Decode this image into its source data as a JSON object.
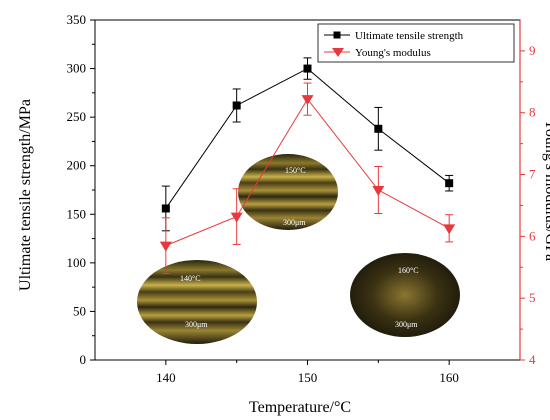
{
  "chart_data": {
    "type": "line",
    "x": [
      140,
      145,
      150,
      155,
      160
    ],
    "xlabel": "Temperature/°C",
    "xlim": [
      135,
      165
    ],
    "xticks": [
      140,
      150,
      160
    ],
    "ylabel": "Ultimate tensile strength/MPa",
    "ylim": [
      0,
      350
    ],
    "yticks": [
      0,
      50,
      100,
      150,
      200,
      250,
      300,
      350
    ],
    "y2label": "Young's modulus/GPa",
    "y2lim": [
      4,
      9.5
    ],
    "y2ticks": [
      4,
      5,
      6,
      7,
      8,
      9
    ],
    "grid": false,
    "legend_position": "top-right",
    "series": [
      {
        "name": "Ultimate tensile strength",
        "axis": "left",
        "color": "#000000",
        "marker": "square",
        "values": [
          156,
          262,
          300,
          238,
          182
        ],
        "error": [
          23,
          17,
          11,
          22,
          8
        ]
      },
      {
        "name": "Young's modulus",
        "axis": "right",
        "color": "#e8383d",
        "marker": "triangle-down",
        "values": [
          5.85,
          6.32,
          8.22,
          6.75,
          6.13
        ],
        "error": [
          0.45,
          0.45,
          0.26,
          0.38,
          0.22
        ]
      }
    ]
  },
  "insets": [
    {
      "temperature_label": "140°C",
      "scale_label": "300μm"
    },
    {
      "temperature_label": "150°C",
      "scale_label": "300μm"
    },
    {
      "temperature_label": "160°C",
      "scale_label": "300μm"
    }
  ]
}
